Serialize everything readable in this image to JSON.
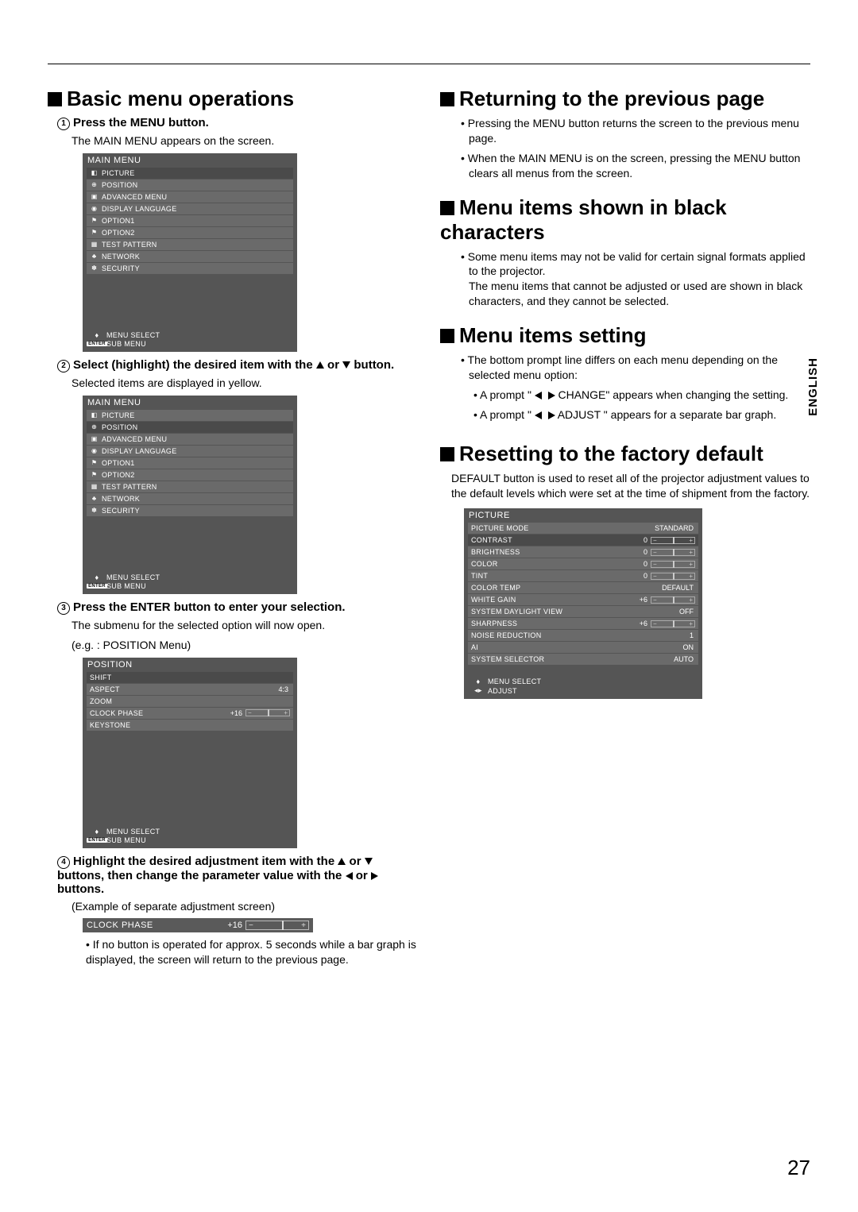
{
  "page_number": "27",
  "language_tab": "ENGLISH",
  "left": {
    "title": "Basic menu operations",
    "step1_label": "Press the MENU button.",
    "step1_sub": "The MAIN MENU appears on the screen.",
    "step2_label_a": "Select (highlight) the desired item with the ",
    "step2_label_b": " or ",
    "step2_label_c": " button.",
    "step2_sub": "Selected items are displayed in yellow.",
    "step3_label": "Press the ENTER button to enter your selection.",
    "step3_sub1": "The submenu for the selected option will now open.",
    "step3_sub2": "(e.g. : POSITION Menu)",
    "step4_a": "Highlight the desired adjustment item with the ",
    "step4_b": " or ",
    "step4_c": " buttons, then change the parameter value with the ",
    "step4_d": " or ",
    "step4_e": " buttons.",
    "step4_sub": "(Example of separate adjustment screen)",
    "step4_note": "If no button is operated for approx. 5 seconds while a bar graph is displayed, the screen will return to the previous page."
  },
  "menu1": {
    "title": "MAIN MENU",
    "items": [
      {
        "icon": "◧",
        "label": "PICTURE",
        "sel": true
      },
      {
        "icon": "⊕",
        "label": "POSITION"
      },
      {
        "icon": "▣",
        "label": "ADVANCED MENU"
      },
      {
        "icon": "◉",
        "label": "DISPLAY LANGUAGE"
      },
      {
        "icon": "⚑",
        "label": "OPTION1"
      },
      {
        "icon": "⚑",
        "label": "OPTION2"
      },
      {
        "icon": "▦",
        "label": "TEST PATTERN"
      },
      {
        "icon": "♣",
        "label": "NETWORK"
      },
      {
        "icon": "✽",
        "label": "SECURITY"
      }
    ],
    "foot1": "MENU SELECT",
    "foot2": "SUB MENU"
  },
  "menu2": {
    "title": "MAIN MENU",
    "items": [
      {
        "icon": "◧",
        "label": "PICTURE"
      },
      {
        "icon": "⊕",
        "label": "POSITION",
        "sel": true
      },
      {
        "icon": "▣",
        "label": "ADVANCED MENU"
      },
      {
        "icon": "◉",
        "label": "DISPLAY LANGUAGE"
      },
      {
        "icon": "⚑",
        "label": "OPTION1"
      },
      {
        "icon": "⚑",
        "label": "OPTION2"
      },
      {
        "icon": "▦",
        "label": "TEST PATTERN"
      },
      {
        "icon": "♣",
        "label": "NETWORK"
      },
      {
        "icon": "✽",
        "label": "SECURITY"
      }
    ],
    "foot1": "MENU SELECT",
    "foot2": "SUB MENU"
  },
  "menu3": {
    "title": "POSITION",
    "items": [
      {
        "label": "SHIFT",
        "sel": true
      },
      {
        "label": "ASPECT",
        "val": "4:3"
      },
      {
        "label": "ZOOM"
      },
      {
        "label": "CLOCK PHASE",
        "val": "+16",
        "bar": true
      },
      {
        "label": "KEYSTONE"
      }
    ],
    "foot1": "MENU SELECT",
    "foot2": "SUB MENU"
  },
  "adjbar": {
    "label": "CLOCK PHASE",
    "val": "+16"
  },
  "right": {
    "r1_title": "Returning to the previous page",
    "r1_b1": "Pressing the MENU button returns the screen to the previous menu page.",
    "r1_b2": "When the MAIN MENU is on the screen, pressing the MENU button clears all menus from the screen.",
    "r2_title": "Menu items shown in black characters",
    "r2_b1": "Some menu items may not be valid for certain signal formats applied to the projector.\nThe menu items that cannot be adjusted or used are shown in black characters, and they cannot be selected.",
    "r3_title": "Menu items setting",
    "r3_b1": "The bottom prompt line differs on each menu depending on the selected menu option:",
    "r3_b2a": "A prompt \" ",
    "r3_b2b": " CHANGE\" appears when changing the setting.",
    "r3_b3a": "A prompt \" ",
    "r3_b3b": " ADJUST \" appears for a separate bar graph.",
    "r4_title": "Resetting to the factory default",
    "r4_body": "DEFAULT button is used to reset all of the projector adjustment values to the default levels which were set at the time of shipment from the factory."
  },
  "menu4": {
    "title": "PICTURE",
    "items": [
      {
        "label": "PICTURE MODE",
        "val": "STANDARD"
      },
      {
        "label": "CONTRAST",
        "val": "0",
        "bar": true,
        "sel": true
      },
      {
        "label": "BRIGHTNESS",
        "val": "0",
        "bar": true
      },
      {
        "label": "COLOR",
        "val": "0",
        "bar": true
      },
      {
        "label": "TINT",
        "val": "0",
        "bar": true
      },
      {
        "label": "COLOR TEMP",
        "val": "DEFAULT"
      },
      {
        "label": "WHITE GAIN",
        "val": "+6",
        "bar": true
      },
      {
        "label": "SYSTEM DAYLIGHT VIEW",
        "val": "OFF"
      },
      {
        "label": "SHARPNESS",
        "val": "+6",
        "bar": true
      },
      {
        "label": "NOISE REDUCTION",
        "val": "1"
      },
      {
        "label": "AI",
        "val": "ON"
      },
      {
        "label": "SYSTEM SELECTOR",
        "val": "AUTO"
      }
    ],
    "foot1": "MENU SELECT",
    "foot2": "ADJUST"
  }
}
